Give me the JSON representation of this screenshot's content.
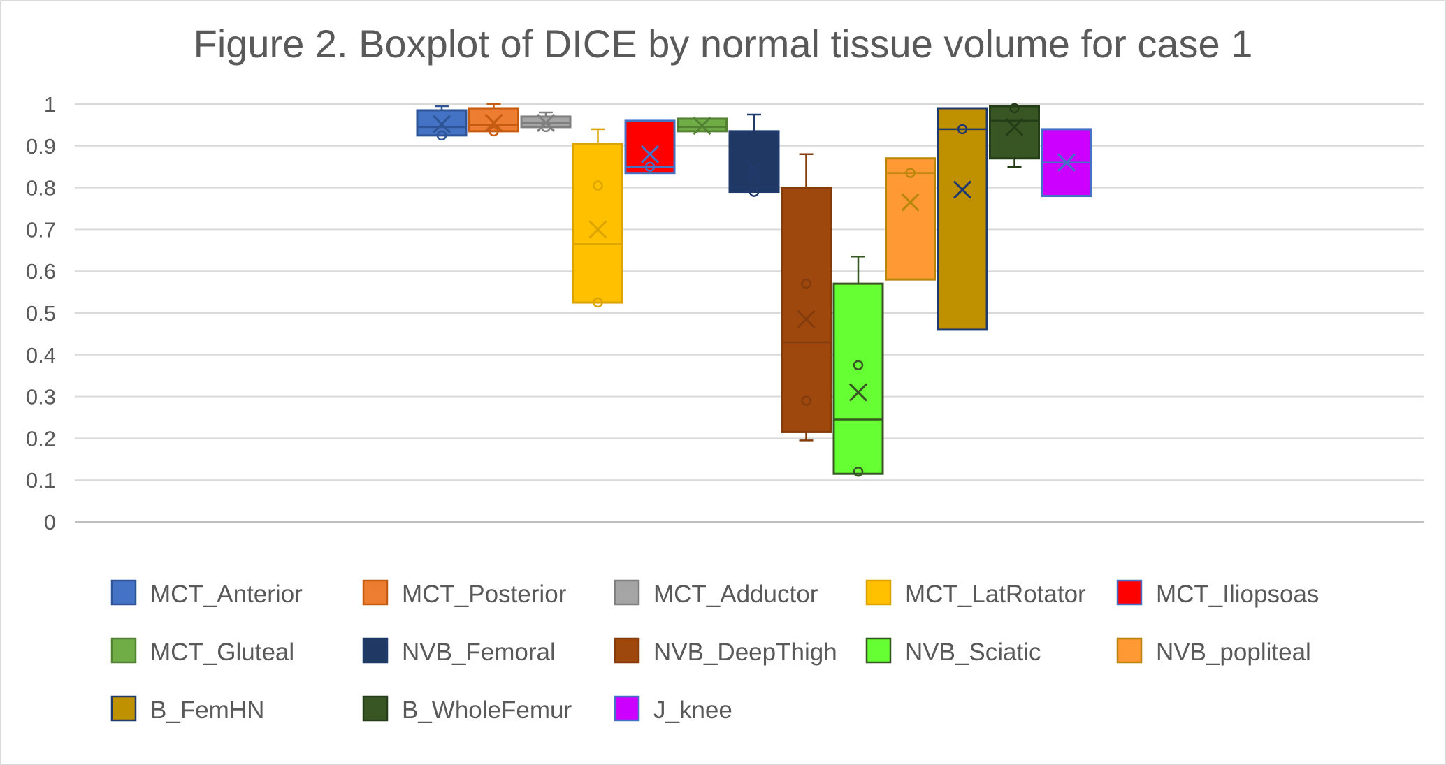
{
  "chart_data": {
    "type": "boxplot",
    "title": "Figure 2. Boxplot of DICE by normal tissue volume for case 1",
    "xlabel": "",
    "ylabel": "",
    "ylim": [
      0,
      1
    ],
    "yticks": [
      "0",
      "0.1",
      "0.2",
      "0.3",
      "0.4",
      "0.5",
      "0.6",
      "0.7",
      "0.8",
      "0.9",
      "1"
    ],
    "grid": true,
    "legend_position": "bottom",
    "series": [
      {
        "name": "MCT_Anterior",
        "color": "#4472c4",
        "edge": "#2f5597",
        "min": 0.925,
        "q1": 0.925,
        "median": 0.945,
        "q3": 0.985,
        "max": 0.995,
        "mean": 0.952,
        "points": [
          0.925
        ]
      },
      {
        "name": "MCT_Posterior",
        "color": "#ed7d31",
        "edge": "#c55a11",
        "min": 0.935,
        "q1": 0.935,
        "median": 0.95,
        "q3": 0.99,
        "max": 1.0,
        "mean": 0.955,
        "points": [
          0.935
        ]
      },
      {
        "name": "MCT_Adductor",
        "color": "#a5a5a5",
        "edge": "#7f7f7f",
        "min": 0.945,
        "q1": 0.945,
        "median": 0.955,
        "q3": 0.97,
        "max": 0.98,
        "mean": 0.955,
        "points": [
          0.945
        ]
      },
      {
        "name": "MCT_LatRotator",
        "color": "#ffc000",
        "edge": "#dba400",
        "min": 0.525,
        "q1": 0.525,
        "median": 0.665,
        "q3": 0.905,
        "max": 0.94,
        "mean": 0.7,
        "points": [
          0.805,
          0.525
        ]
      },
      {
        "name": "MCT_Iliopsoas",
        "color": "#ff0000",
        "edge": "#4472c4",
        "min": 0.835,
        "q1": 0.835,
        "median": 0.85,
        "q3": 0.96,
        "max": 0.96,
        "mean": 0.88,
        "points": [
          0.85
        ]
      },
      {
        "name": "MCT_Gluteal",
        "color": "#70ad47",
        "edge": "#548235",
        "min": 0.935,
        "q1": 0.935,
        "median": 0.945,
        "q3": 0.965,
        "max": 0.965,
        "mean": 0.948,
        "points": []
      },
      {
        "name": "NVB_Femoral",
        "color": "#203864",
        "edge": "#1f3a6b",
        "min": 0.79,
        "q1": 0.79,
        "median": 0.8,
        "q3": 0.935,
        "max": 0.975,
        "mean": 0.845,
        "points": [
          0.82,
          0.79
        ]
      },
      {
        "name": "NVB_DeepThigh",
        "color": "#9e480e",
        "edge": "#843c0c",
        "min": 0.195,
        "q1": 0.215,
        "median": 0.43,
        "q3": 0.8,
        "max": 0.88,
        "mean": 0.485,
        "points": [
          0.57,
          0.29
        ]
      },
      {
        "name": "NVB_Sciatic",
        "color": "#66ff33",
        "edge": "#375623",
        "min": 0.115,
        "q1": 0.115,
        "median": 0.245,
        "q3": 0.57,
        "max": 0.635,
        "mean": 0.31,
        "points": [
          0.375,
          0.12
        ]
      },
      {
        "name": "NVB_popliteal",
        "color": "#ff9933",
        "edge": "#b8860b",
        "min": 0.58,
        "q1": 0.58,
        "median": 0.835,
        "q3": 0.87,
        "max": 0.87,
        "mean": 0.765,
        "points": [
          0.835
        ]
      },
      {
        "name": "B_FemHN",
        "color": "#bf9000",
        "edge": "#1f3a6b",
        "min": 0.46,
        "q1": 0.46,
        "median": 0.94,
        "q3": 0.99,
        "max": 0.99,
        "mean": 0.795,
        "points": [
          0.94
        ]
      },
      {
        "name": "B_WholeFemur",
        "color": "#375623",
        "edge": "#243d18",
        "min": 0.85,
        "q1": 0.87,
        "median": 0.96,
        "q3": 0.995,
        "max": 0.995,
        "mean": 0.945,
        "points": [
          0.99
        ]
      },
      {
        "name": "J_knee",
        "color": "#cc00ff",
        "edge": "#4472c4",
        "min": 0.78,
        "q1": 0.78,
        "median": 0.86,
        "q3": 0.94,
        "max": 0.94,
        "mean": 0.86,
        "points": []
      }
    ]
  }
}
